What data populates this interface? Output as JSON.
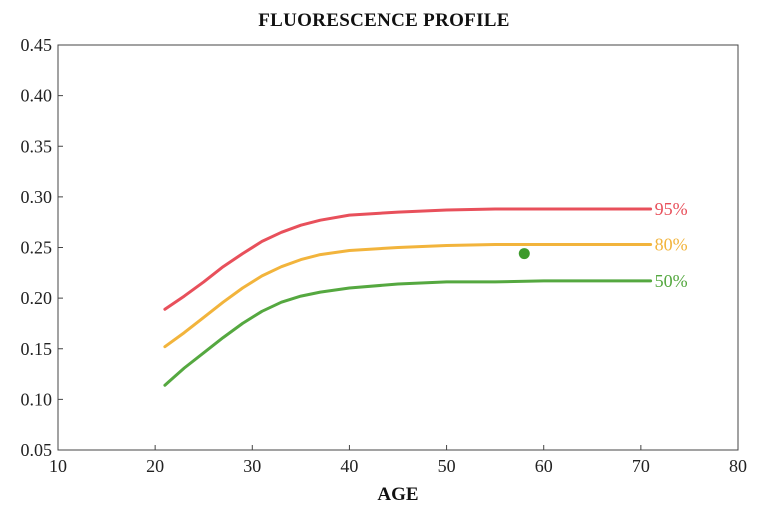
{
  "chart_data": {
    "type": "line",
    "title": "FLUORESCENCE PROFILE",
    "xlabel": "AGE",
    "ylabel": "",
    "xlim": [
      10,
      80
    ],
    "ylim": [
      0.05,
      0.45
    ],
    "x_ticks": [
      "10",
      "20",
      "30",
      "40",
      "50",
      "60",
      "70",
      "80"
    ],
    "y_ticks": [
      "0.05",
      "0.10",
      "0.15",
      "0.20",
      "0.25",
      "0.30",
      "0.35",
      "0.40",
      "0.45"
    ],
    "grid": false,
    "series": [
      {
        "name": "95%",
        "color": "#e8505b",
        "x": [
          21,
          23,
          25,
          27,
          29,
          31,
          33,
          35,
          37,
          40,
          45,
          50,
          55,
          60,
          65,
          71
        ],
        "y": [
          0.189,
          0.202,
          0.216,
          0.231,
          0.244,
          0.256,
          0.265,
          0.272,
          0.277,
          0.282,
          0.285,
          0.287,
          0.288,
          0.288,
          0.288,
          0.288
        ]
      },
      {
        "name": "80%",
        "color": "#f2b43c",
        "x": [
          21,
          23,
          25,
          27,
          29,
          31,
          33,
          35,
          37,
          40,
          45,
          50,
          55,
          60,
          65,
          71
        ],
        "y": [
          0.152,
          0.166,
          0.181,
          0.196,
          0.21,
          0.222,
          0.231,
          0.238,
          0.243,
          0.247,
          0.25,
          0.252,
          0.253,
          0.253,
          0.253,
          0.253
        ]
      },
      {
        "name": "50%",
        "color": "#55a840",
        "x": [
          21,
          23,
          25,
          27,
          29,
          31,
          33,
          35,
          37,
          40,
          45,
          50,
          55,
          60,
          65,
          71
        ],
        "y": [
          0.114,
          0.131,
          0.146,
          0.161,
          0.175,
          0.187,
          0.196,
          0.202,
          0.206,
          0.21,
          0.214,
          0.216,
          0.216,
          0.217,
          0.217,
          0.217
        ]
      }
    ],
    "points": [
      {
        "x": 58,
        "y": 0.244,
        "color": "#3d9a2c"
      }
    ]
  }
}
